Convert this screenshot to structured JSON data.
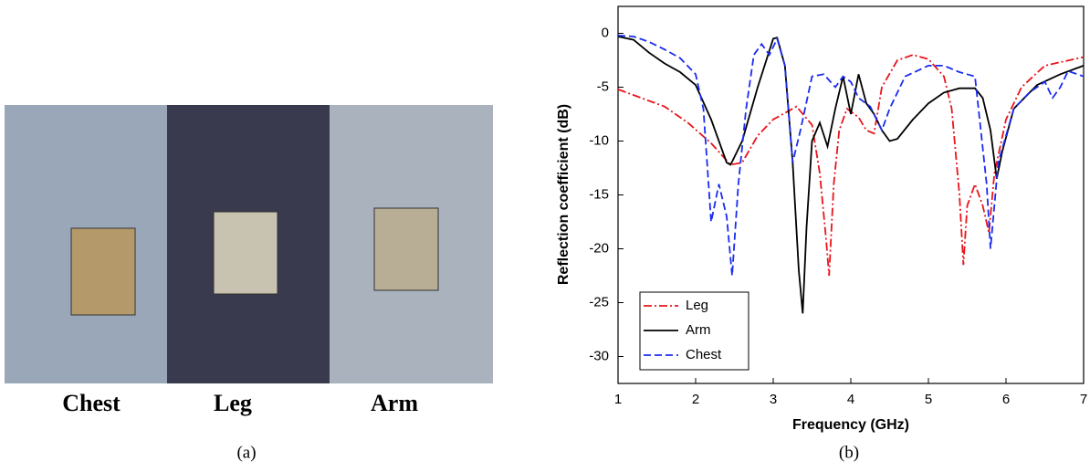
{
  "photo_labels": [
    "Chest",
    "Leg",
    "Arm"
  ],
  "panel_labels": [
    "(a)",
    "(b)"
  ],
  "chart_data": {
    "type": "line",
    "xlabel": "Frequency (GHz)",
    "ylabel": "Reflection coefficient (dB)",
    "xlim": [
      1,
      7
    ],
    "xticks": [
      1,
      2,
      3,
      4,
      5,
      6,
      7
    ],
    "ylim": [
      -32.5,
      2.5
    ],
    "yticks": [
      0,
      -5,
      -10,
      -15,
      -20,
      -25,
      -30
    ],
    "legend": "lower left",
    "series": [
      {
        "name": "Leg",
        "color": "#e8141b",
        "linestyle": "dashdot",
        "x": [
          1.0,
          1.3,
          1.6,
          1.9,
          2.2,
          2.45,
          2.6,
          2.8,
          3.0,
          3.3,
          3.5,
          3.6,
          3.68,
          3.72,
          3.78,
          3.85,
          3.95,
          4.1,
          4.2,
          4.3,
          4.4,
          4.6,
          4.8,
          5.0,
          5.2,
          5.3,
          5.4,
          5.45,
          5.5,
          5.6,
          5.7,
          5.78,
          5.85,
          6.0,
          6.2,
          6.5,
          7.0
        ],
        "values": [
          -5.2,
          -6,
          -6.8,
          -8.3,
          -10.2,
          -12.2,
          -12,
          -9.5,
          -8,
          -6.8,
          -8.5,
          -13,
          -19,
          -22.5,
          -14,
          -9,
          -7,
          -7.8,
          -9,
          -9.3,
          -5,
          -2.5,
          -2,
          -2.4,
          -4,
          -7,
          -15,
          -21.5,
          -16,
          -14,
          -16,
          -18.5,
          -13,
          -8,
          -5,
          -3,
          -2.2
        ]
      },
      {
        "name": "Arm",
        "color": "#000000",
        "linestyle": "solid",
        "x": [
          1.0,
          1.2,
          1.4,
          1.6,
          1.8,
          2.0,
          2.2,
          2.4,
          2.45,
          2.6,
          2.8,
          3.0,
          3.05,
          3.15,
          3.25,
          3.33,
          3.38,
          3.43,
          3.5,
          3.6,
          3.7,
          3.8,
          3.9,
          4.0,
          4.1,
          4.2,
          4.3,
          4.4,
          4.5,
          4.6,
          4.8,
          5.0,
          5.2,
          5.4,
          5.6,
          5.7,
          5.8,
          5.88,
          5.95,
          6.1,
          6.4,
          6.7,
          7.0
        ],
        "values": [
          -0.3,
          -0.6,
          -1.8,
          -2.8,
          -3.6,
          -4.8,
          -8,
          -12,
          -12.2,
          -10,
          -5,
          -0.5,
          -0.4,
          -3,
          -12,
          -22,
          -26,
          -18,
          -10,
          -8.3,
          -10.5,
          -7,
          -4,
          -7.5,
          -3.8,
          -6.5,
          -7.5,
          -9,
          -10,
          -9.8,
          -8,
          -6.5,
          -5.5,
          -5.1,
          -5.1,
          -6,
          -9,
          -13.5,
          -11,
          -7,
          -4.8,
          -3.8,
          -3
        ]
      },
      {
        "name": "Chest",
        "color": "#1a2cf0",
        "linestyle": "dashed",
        "x": [
          1.0,
          1.2,
          1.4,
          1.6,
          1.8,
          2.0,
          2.1,
          2.2,
          2.3,
          2.4,
          2.47,
          2.55,
          2.65,
          2.75,
          2.85,
          2.95,
          3.05,
          3.15,
          3.25,
          3.35,
          3.5,
          3.65,
          3.8,
          3.9,
          4.0,
          4.1,
          4.25,
          4.4,
          4.5,
          4.7,
          5.0,
          5.2,
          5.4,
          5.6,
          5.75,
          5.8,
          5.9,
          6.1,
          6.3,
          6.5,
          6.6,
          6.7,
          6.8,
          7.0
        ],
        "values": [
          -0.2,
          -0.3,
          -0.8,
          -1.5,
          -2.3,
          -3.8,
          -7,
          -17.5,
          -14,
          -17,
          -22.5,
          -14,
          -7,
          -2,
          -1,
          -2,
          -0.5,
          -3,
          -12,
          -9,
          -4,
          -3.8,
          -5,
          -4,
          -4.5,
          -6,
          -6.8,
          -9,
          -7,
          -4,
          -3,
          -3,
          -3.6,
          -4,
          -14,
          -20,
          -12,
          -7,
          -5.5,
          -4.5,
          -6,
          -5,
          -3.5,
          -4
        ]
      }
    ]
  }
}
